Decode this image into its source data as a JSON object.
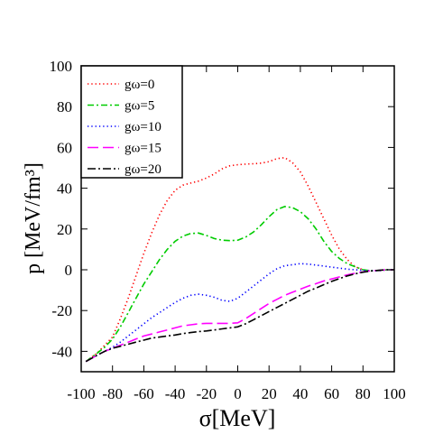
{
  "chart_data": {
    "type": "line",
    "title": "",
    "xlabel": "σ[MeV]",
    "ylabel": "p [MeV/fm³]",
    "xlim": [
      -100,
      100
    ],
    "ylim": [
      -50,
      100
    ],
    "xticks": [
      -100,
      -80,
      -60,
      -40,
      -20,
      0,
      20,
      40,
      60,
      80,
      100
    ],
    "yticks": [
      -40,
      -20,
      0,
      20,
      40,
      60,
      80,
      100
    ],
    "grid": false,
    "legend_position": "top-left",
    "series": [
      {
        "name": "gω=0",
        "color": "#ff0000",
        "dash": "dotted",
        "x": [
          -97,
          -90,
          -85,
          -80,
          -75,
          -70,
          -65,
          -60,
          -55,
          -50,
          -45,
          -40,
          -35,
          -30,
          -25,
          -20,
          -15,
          -10,
          -5,
          0,
          5,
          10,
          15,
          20,
          25,
          30,
          35,
          40,
          45,
          50,
          55,
          60,
          65,
          70,
          75,
          80,
          85,
          90,
          95,
          100
        ],
        "y": [
          -45,
          -41,
          -37,
          -33,
          -24,
          -14,
          -3,
          8,
          18,
          27,
          34,
          39,
          41.5,
          42.5,
          43.5,
          45,
          47,
          49.5,
          51,
          51.5,
          51.8,
          52,
          52.3,
          53,
          54.5,
          55,
          52.5,
          48,
          41,
          33,
          25,
          17,
          10,
          5,
          1.5,
          0,
          -0.5,
          -0.5,
          0,
          0
        ]
      },
      {
        "name": "gω=5",
        "color": "#00cc00",
        "dash": "dashed",
        "x": [
          -97,
          -90,
          -85,
          -80,
          -75,
          -70,
          -65,
          -60,
          -55,
          -50,
          -45,
          -40,
          -35,
          -30,
          -25,
          -20,
          -15,
          -10,
          -5,
          0,
          5,
          10,
          15,
          20,
          25,
          30,
          35,
          40,
          45,
          50,
          55,
          60,
          65,
          70,
          75,
          80,
          85,
          90,
          95,
          100
        ],
        "y": [
          -45,
          -41,
          -38,
          -34,
          -28,
          -21,
          -14,
          -7,
          -1,
          5,
          10,
          14,
          16.5,
          17.8,
          18,
          16.8,
          15.3,
          14.5,
          14.3,
          14.5,
          16,
          18.5,
          22,
          26,
          29.5,
          31,
          30.5,
          28.5,
          25,
          20,
          14,
          9,
          5.5,
          3,
          1.5,
          0,
          -0.5,
          -0.5,
          0,
          0
        ]
      },
      {
        "name": "gω=10",
        "color": "#0000ff",
        "dash": "dotted",
        "x": [
          -97,
          -90,
          -85,
          -80,
          -75,
          -70,
          -65,
          -60,
          -55,
          -50,
          -45,
          -40,
          -35,
          -30,
          -25,
          -20,
          -15,
          -10,
          -5,
          0,
          5,
          10,
          15,
          20,
          25,
          30,
          35,
          40,
          45,
          50,
          55,
          60,
          65,
          70,
          75,
          80,
          85,
          90,
          95,
          100
        ],
        "y": [
          -45,
          -42,
          -40,
          -38,
          -35.5,
          -32.5,
          -29.5,
          -26.5,
          -23.5,
          -21,
          -18.5,
          -16,
          -14,
          -12.5,
          -12,
          -12.5,
          -13.5,
          -15,
          -15.5,
          -14,
          -11,
          -8,
          -5,
          -2,
          0.5,
          2,
          2.5,
          3,
          2.8,
          2.3,
          1.8,
          1.3,
          0.8,
          0.3,
          0,
          -0.3,
          -0.5,
          -0.5,
          0,
          0
        ]
      },
      {
        "name": "gω=15",
        "color": "#ff00ff",
        "dash": "longdash",
        "x": [
          -97,
          -90,
          -85,
          -80,
          -75,
          -70,
          -65,
          -60,
          -55,
          -50,
          -45,
          -40,
          -35,
          -30,
          -25,
          -20,
          -15,
          -10,
          -5,
          0,
          5,
          10,
          15,
          20,
          25,
          30,
          35,
          40,
          45,
          50,
          55,
          60,
          65,
          70,
          75,
          80,
          85,
          90,
          95,
          100
        ],
        "y": [
          -45,
          -42,
          -40,
          -38.5,
          -37,
          -35.5,
          -34,
          -32.5,
          -31.5,
          -30.5,
          -29.5,
          -28.5,
          -27.5,
          -27,
          -26.5,
          -26.3,
          -26.3,
          -26.3,
          -26.3,
          -26,
          -24,
          -21.5,
          -19,
          -16.5,
          -14.5,
          -12.5,
          -11,
          -9.5,
          -8,
          -6.8,
          -5.5,
          -4.5,
          -3.5,
          -2.5,
          -1.7,
          -1,
          -0.5,
          -0.3,
          0,
          0
        ]
      },
      {
        "name": "gω=20",
        "color": "#000000",
        "dash": "dashdot",
        "x": [
          -97,
          -90,
          -85,
          -80,
          -75,
          -70,
          -65,
          -60,
          -55,
          -50,
          -45,
          -40,
          -35,
          -30,
          -25,
          -20,
          -15,
          -10,
          -5,
          0,
          5,
          10,
          15,
          20,
          25,
          30,
          35,
          40,
          45,
          50,
          55,
          60,
          65,
          70,
          75,
          80,
          85,
          90,
          95,
          100
        ],
        "y": [
          -45,
          -42,
          -40,
          -38.5,
          -37.5,
          -36.5,
          -35.5,
          -34.5,
          -33.5,
          -33,
          -32.5,
          -32,
          -31.3,
          -30.8,
          -30.3,
          -30,
          -29.5,
          -29,
          -28.5,
          -28,
          -26.5,
          -24.5,
          -22.5,
          -20.5,
          -18.5,
          -16.5,
          -14.5,
          -12.5,
          -10.5,
          -9,
          -7.3,
          -5.7,
          -4.3,
          -3,
          -2,
          -1.2,
          -0.6,
          -0.2,
          0,
          0
        ]
      }
    ]
  }
}
